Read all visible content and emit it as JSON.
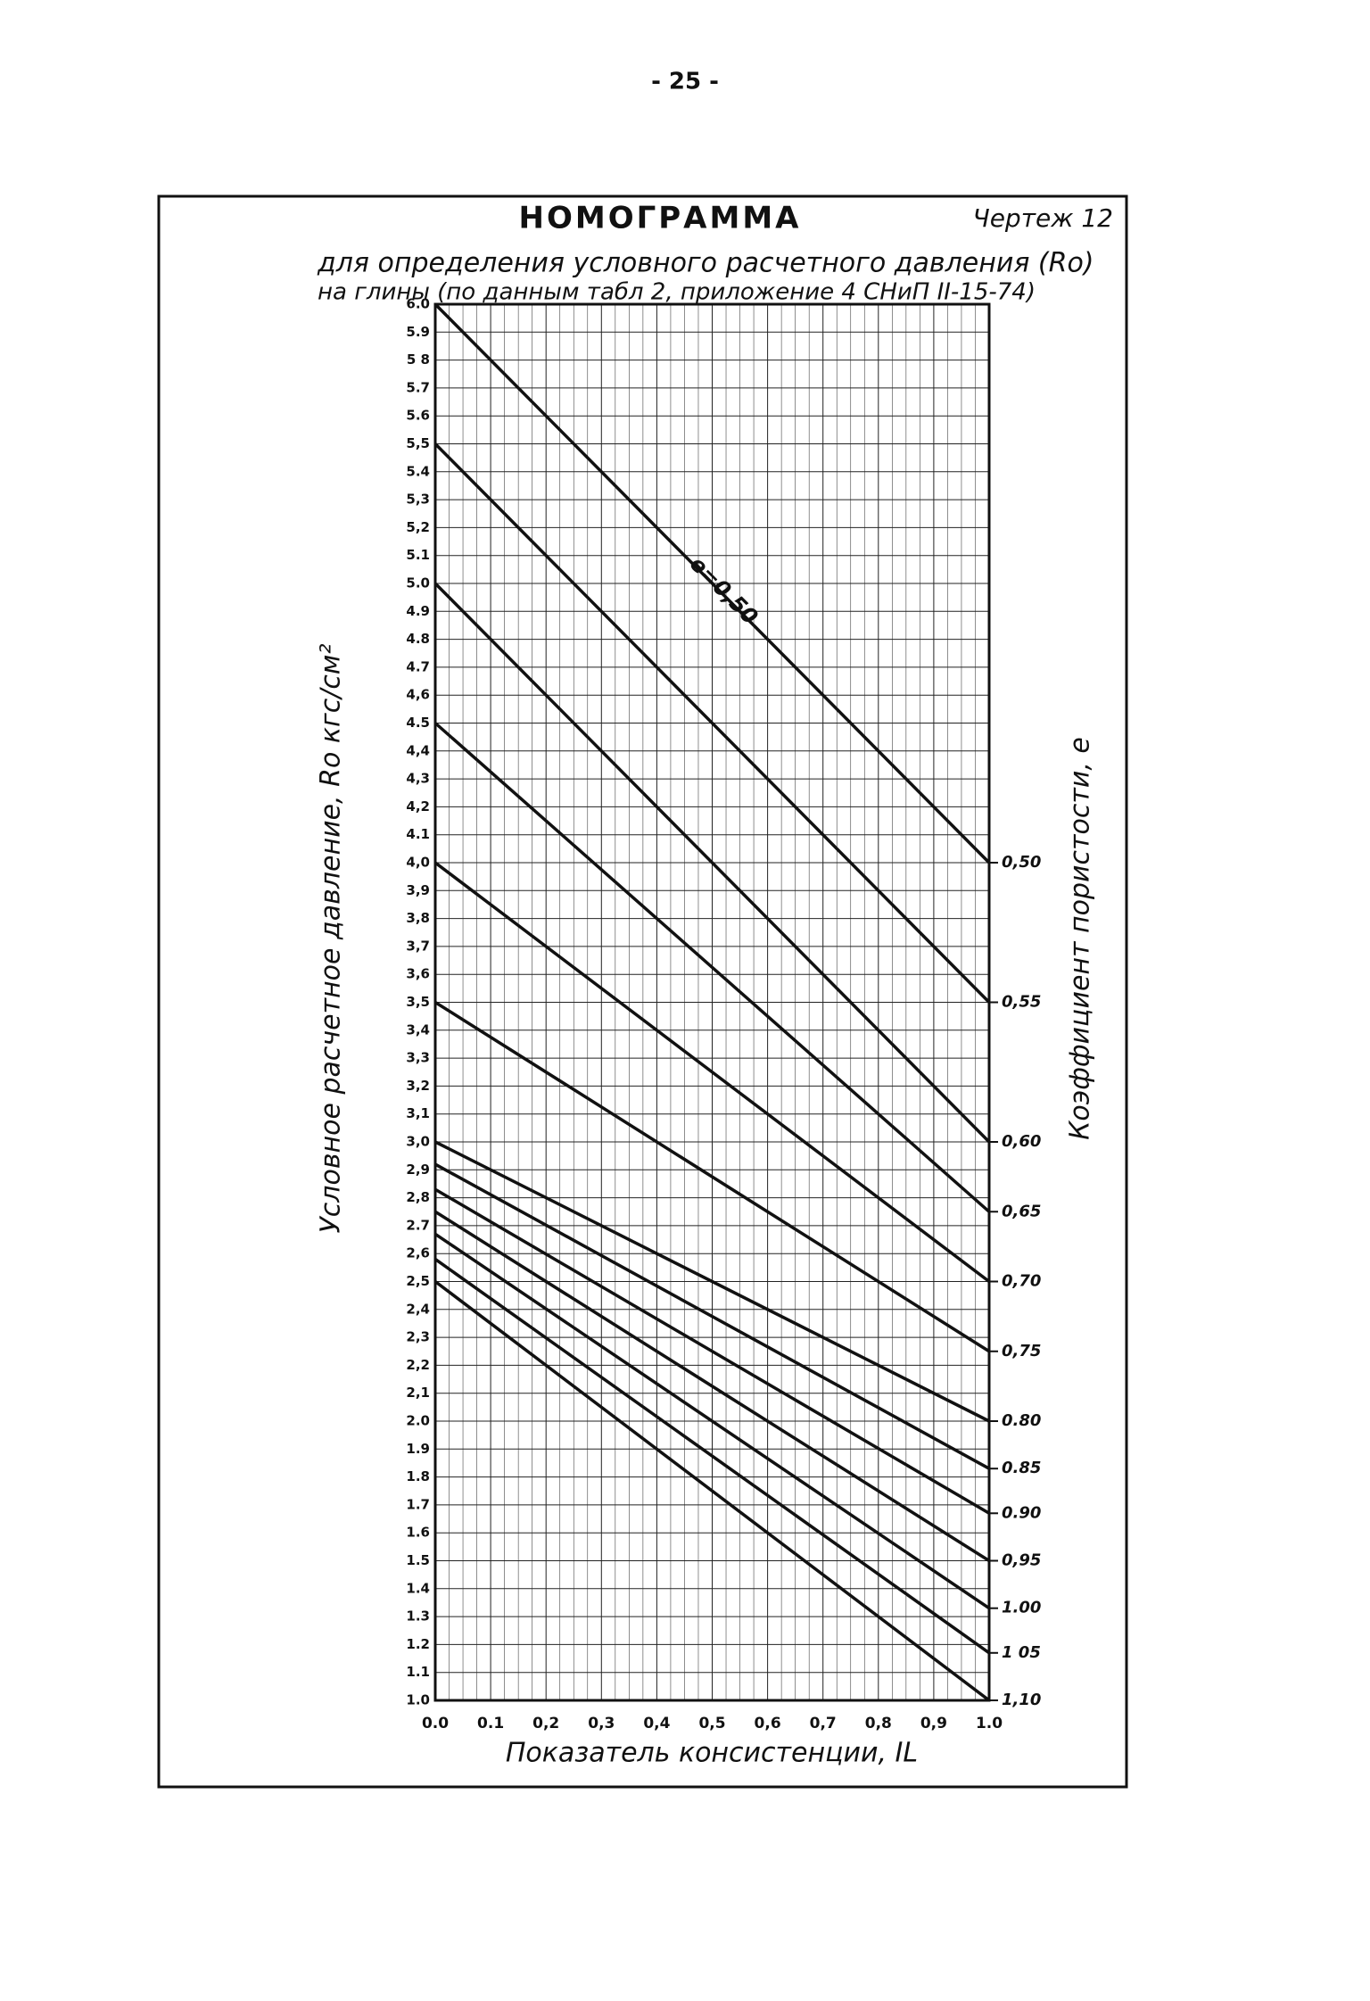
{
  "page_number": "- 25 -",
  "chart_data": {
    "type": "line",
    "title": "НОМОГРАММА",
    "drawing_label": "Чертеж 12",
    "subtitle": [
      "для определения условного расчетного давления (Ro)",
      "на глины (по данным табл 2, приложение 4 СНиП II-15-74)"
    ],
    "xlabel": "Показатель консистенции, IL",
    "ylabel": "Условное расчетное давление, Ro  кгс/см²",
    "y2label": "Коэффициент пористости, e",
    "annotation": "е=0,50",
    "x": [
      0,
      1
    ],
    "series": [
      {
        "name": "0,50",
        "values": [
          6.0,
          4.0
        ]
      },
      {
        "name": "0,55",
        "values": [
          5.5,
          3.5
        ]
      },
      {
        "name": "0,60",
        "values": [
          5.0,
          3.0
        ]
      },
      {
        "name": "0,65",
        "values": [
          4.5,
          2.75
        ]
      },
      {
        "name": "0,70",
        "values": [
          4.0,
          2.5
        ]
      },
      {
        "name": "0,75",
        "values": [
          3.5,
          2.25
        ]
      },
      {
        "name": "0.80",
        "values": [
          3.0,
          2.0
        ]
      },
      {
        "name": "0.85",
        "values": [
          2.92,
          1.83
        ]
      },
      {
        "name": "0.90",
        "values": [
          2.83,
          1.67
        ]
      },
      {
        "name": "0,95",
        "values": [
          2.75,
          1.5
        ]
      },
      {
        "name": "1.00",
        "values": [
          2.67,
          1.33
        ]
      },
      {
        "name": "1 05",
        "values": [
          2.58,
          1.17
        ]
      },
      {
        "name": "1,10",
        "values": [
          2.5,
          1.0
        ]
      }
    ],
    "color": "#111111",
    "xlim": [
      0,
      1
    ],
    "ylim": [
      1,
      6
    ],
    "xticks": [
      {
        "value": 0,
        "label": "0.0"
      },
      {
        "value": 0.1,
        "label": "0.1"
      },
      {
        "value": 0.2,
        "label": "0,2"
      },
      {
        "value": 0.3,
        "label": "0,3"
      },
      {
        "value": 0.4,
        "label": "0,4"
      },
      {
        "value": 0.5,
        "label": "0,5"
      },
      {
        "value": 0.6,
        "label": "0,6"
      },
      {
        "value": 0.7,
        "label": "0,7"
      },
      {
        "value": 0.8,
        "label": "0,8"
      },
      {
        "value": 0.9,
        "label": "0,9"
      },
      {
        "value": 1,
        "label": "1.0"
      }
    ],
    "yticks": [
      {
        "value": 1,
        "label": "1.0"
      },
      {
        "value": 1.1,
        "label": "1.1"
      },
      {
        "value": 1.2,
        "label": "1.2"
      },
      {
        "value": 1.3,
        "label": "1.3"
      },
      {
        "value": 1.4,
        "label": "1.4"
      },
      {
        "value": 1.5,
        "label": "1.5"
      },
      {
        "value": 1.6,
        "label": "1.6"
      },
      {
        "value": 1.7,
        "label": "1.7"
      },
      {
        "value": 1.8,
        "label": "1.8"
      },
      {
        "value": 1.9,
        "label": "1.9"
      },
      {
        "value": 2,
        "label": "2.0"
      },
      {
        "value": 2.1,
        "label": "2,1"
      },
      {
        "value": 2.2,
        "label": "2,2"
      },
      {
        "value": 2.3,
        "label": "2,3"
      },
      {
        "value": 2.4,
        "label": "2,4"
      },
      {
        "value": 2.5,
        "label": "2,5"
      },
      {
        "value": 2.6,
        "label": "2,6"
      },
      {
        "value": 2.7,
        "label": "2.7"
      },
      {
        "value": 2.8,
        "label": "2,8"
      },
      {
        "value": 2.9,
        "label": "2,9"
      },
      {
        "value": 3,
        "label": "3,0"
      },
      {
        "value": 3.1,
        "label": "3,1"
      },
      {
        "value": 3.2,
        "label": "3,2"
      },
      {
        "value": 3.3,
        "label": "3,3"
      },
      {
        "value": 3.4,
        "label": "3,4"
      },
      {
        "value": 3.5,
        "label": "3,5"
      },
      {
        "value": 3.6,
        "label": "3,6"
      },
      {
        "value": 3.7,
        "label": "3,7"
      },
      {
        "value": 3.8,
        "label": "3,8"
      },
      {
        "value": 3.9,
        "label": "3,9"
      },
      {
        "value": 4,
        "label": "4,0"
      },
      {
        "value": 4.1,
        "label": "4.1"
      },
      {
        "value": 4.2,
        "label": "4,2"
      },
      {
        "value": 4.3,
        "label": "4,3"
      },
      {
        "value": 4.4,
        "label": "4,4"
      },
      {
        "value": 4.5,
        "label": "4.5"
      },
      {
        "value": 4.6,
        "label": "4,6"
      },
      {
        "value": 4.7,
        "label": "4.7"
      },
      {
        "value": 4.8,
        "label": "4.8"
      },
      {
        "value": 4.9,
        "label": "4.9"
      },
      {
        "value": 5,
        "label": "5.0"
      },
      {
        "value": 5.1,
        "label": "5.1"
      },
      {
        "value": 5.2,
        "label": "5,2"
      },
      {
        "value": 5.3,
        "label": "5,3"
      },
      {
        "value": 5.4,
        "label": "5.4"
      },
      {
        "value": 5.5,
        "label": "5,5"
      },
      {
        "value": 5.6,
        "label": "5.6"
      },
      {
        "value": 5.7,
        "label": "5.7"
      },
      {
        "value": 5.8,
        "label": "5 8"
      },
      {
        "value": 5.9,
        "label": "5.9"
      },
      {
        "value": 6,
        "label": "6.0"
      }
    ],
    "grid": true
  }
}
